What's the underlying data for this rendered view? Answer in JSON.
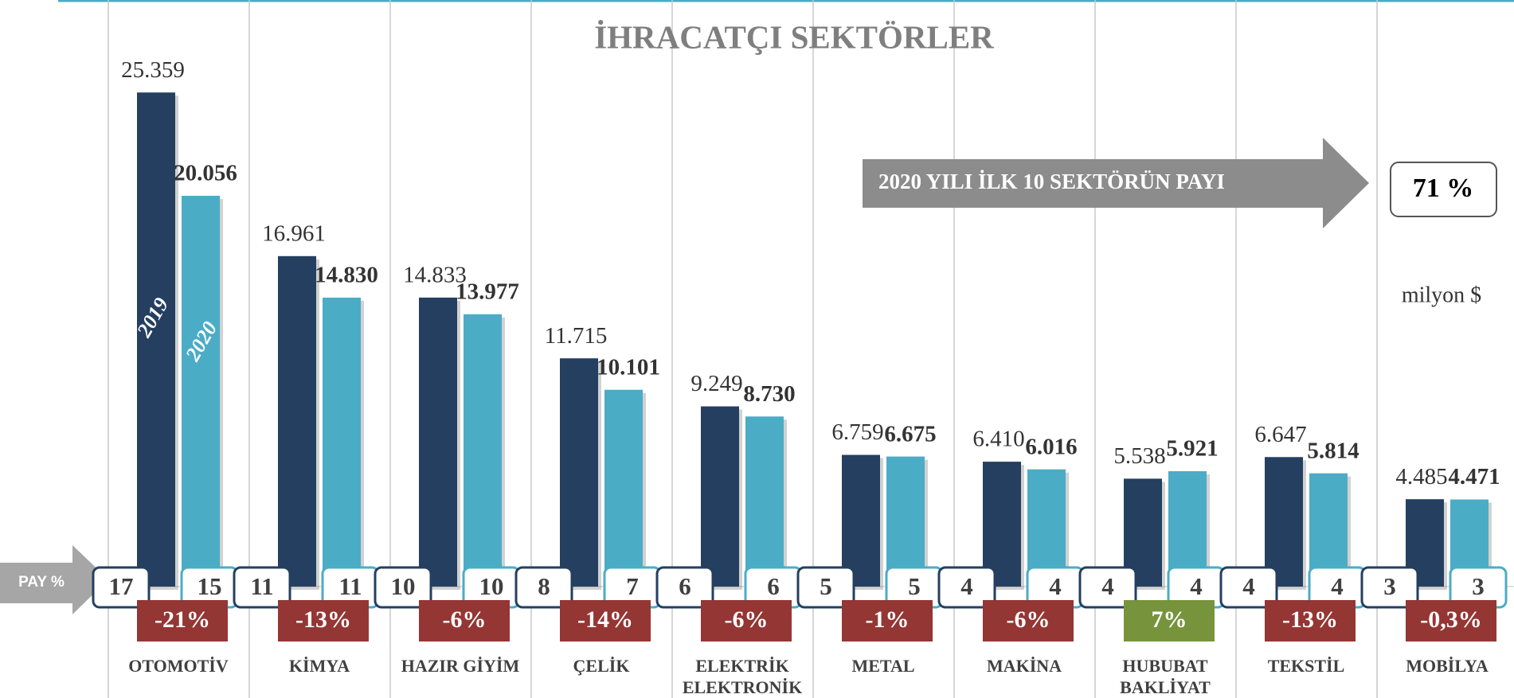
{
  "chart_data": {
    "type": "bar",
    "title": "İHRACATÇI SEKTÖRLER",
    "unit_label": "milyon $",
    "categories": [
      "OTOMOTİV",
      "KİMYA",
      "HAZIR GİYİM",
      "ÇELİK",
      "ELEKTRİK\nELEKTRONİK",
      "METAL",
      "MAKİNA",
      "HUBUBAT\nBAKLİYAT",
      "TEKSTİL",
      "MOBİLYA"
    ],
    "series": [
      {
        "name": "2019",
        "color": "#243f60",
        "values": [
          25.359,
          16.961,
          14.833,
          11.715,
          9.249,
          6.759,
          6.41,
          5.538,
          6.647,
          4.485
        ],
        "value_labels": [
          "25.359",
          "16.961",
          "14.833",
          "11.715",
          "9.249",
          "6.759",
          "6.410",
          "5.538",
          "6.647",
          "4.485"
        ],
        "shares": [
          17,
          11,
          10,
          8,
          6,
          5,
          4,
          4,
          4,
          3
        ]
      },
      {
        "name": "2020",
        "color": "#4bacc6",
        "values": [
          20.056,
          14.83,
          13.977,
          10.101,
          8.73,
          6.675,
          6.016,
          5.921,
          5.814,
          4.471
        ],
        "value_labels": [
          "20.056",
          "14.830",
          "13.977",
          "10.101",
          "8.730",
          "6.675",
          "6.016",
          "5.921",
          "5.814",
          "4.471"
        ],
        "shares": [
          15,
          11,
          10,
          7,
          6,
          5,
          4,
          4,
          4,
          3
        ]
      }
    ],
    "share_label": "PAY %",
    "change": {
      "values": [
        -21,
        -13,
        -6,
        -14,
        -6,
        -1,
        -6,
        7,
        -13,
        -0.3
      ],
      "value_labels": [
        "-21%",
        "-13%",
        "-6%",
        "-14%",
        "-6%",
        "-1%",
        "-6%",
        "7%",
        "-13%",
        "-0,3%"
      ],
      "negative_color": "#943634",
      "positive_color": "#77933c"
    },
    "callout": {
      "text": "2020 YILI İLK 10 SEKTÖRÜN PAYI",
      "value": 71,
      "value_label": "71 %"
    }
  }
}
